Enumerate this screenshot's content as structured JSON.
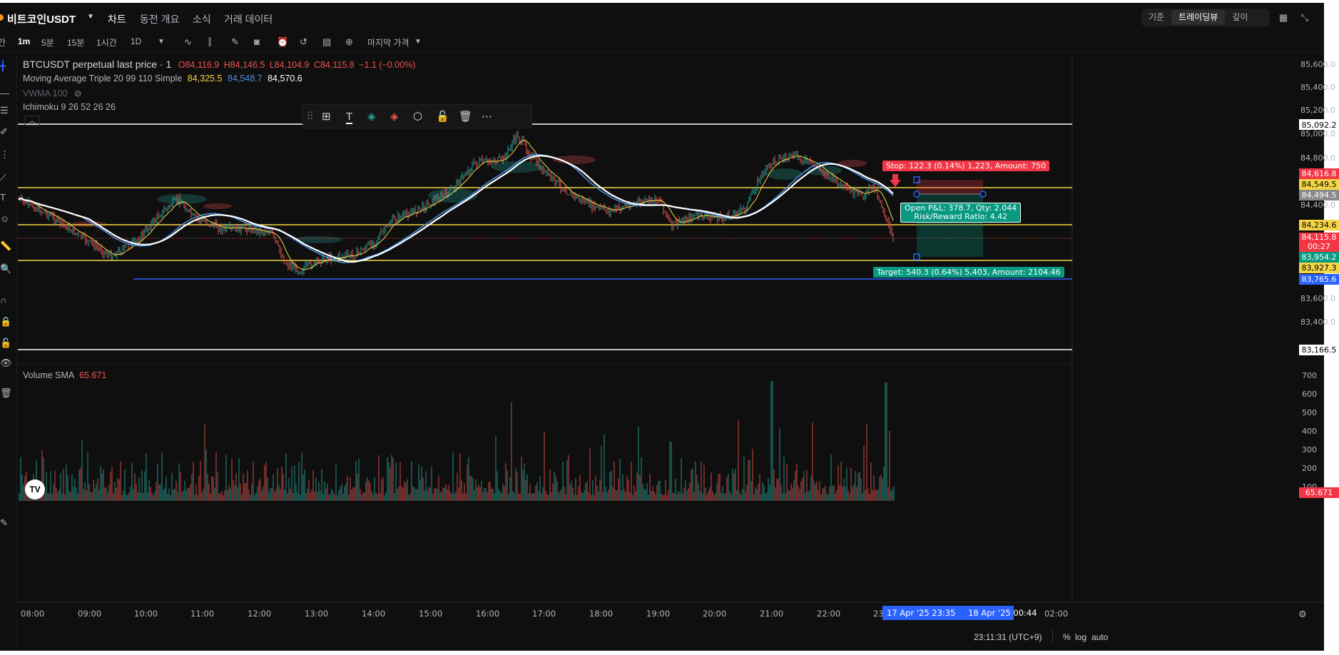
{
  "header": {
    "symbol": "비트코인USDT",
    "nav": [
      "차트",
      "동전 개요",
      "소식",
      "거래 데이터"
    ],
    "view_segments": [
      "기준",
      "트레이딩뷰",
      "깊이"
    ],
    "active_segment": "트레이딩뷰"
  },
  "toolbar": {
    "cut_label": "간",
    "intervals": [
      "1m",
      "5분",
      "15분",
      "1시간",
      "1D"
    ],
    "active_interval": "1m",
    "price_type": "마지막 가격"
  },
  "legend": {
    "title": "BTCUSDT perpetual last price · 1",
    "ohlc": {
      "o": "O84,116.9",
      "h": "H84,146.5",
      "l": "L84,104.9",
      "c": "C84,115.8",
      "chg": "−1.1 (−0.00%)"
    },
    "ma_name": "Moving Average Triple 20 99 110 Simple",
    "ma_values": [
      "84,325.5",
      "84,548.7",
      "84,570.6"
    ],
    "vwma": "VWMA 100",
    "ichimoku": "Ichimoku 9 26 52 26 26",
    "volume_sma": "Volume SMA",
    "volume_sma_value": "65.671"
  },
  "position": {
    "stop_text": "Stop: 122.3 (0.14%) 1,223, Amount: 750",
    "pnl_text": "Open P&L: 378.7, Qty: 2.044",
    "rr_text": "Risk/Reward Ratio: 4.42",
    "target_text": "Target: 540.3 (0.64%) 5,403, Amount: 2104.46"
  },
  "price_axis": [
    "85,600.0",
    "85,400.0",
    "85,200.0",
    "85,000.0",
    "84,800.0",
    "84,400.0",
    "83,600.0",
    "83,400.0"
  ],
  "price_tags": {
    "white_top": "85,092.2",
    "stop": "84,616.8",
    "yellow1": "84,549.5",
    "entry": "84,494.5",
    "yellow2": "84,234.6",
    "last": "84,115.8",
    "countdown": "00:27",
    "target": "83,954.2",
    "yellow3": "83,927.3",
    "blue": "83,765.6",
    "white_bottom": "83,166.5",
    "volume_last": "65.671"
  },
  "volume_axis": [
    "700",
    "600",
    "500",
    "400",
    "300",
    "200",
    "100"
  ],
  "time_axis": [
    "08:00",
    "09:00",
    "10:00",
    "11:00",
    "12:00",
    "13:00",
    "14:00",
    "15:00",
    "16:00",
    "17:00",
    "18:00",
    "19:00",
    "20:00",
    "21:00",
    "22:00",
    "23:",
    "02:00"
  ],
  "time_range": {
    "start": "17 Apr '25   23:35",
    "end": "18 Apr '25   00:44"
  },
  "bottombar": {
    "clock": "23:11:31 (UTC+9)",
    "percent": "%",
    "log": "log",
    "auto": "auto"
  },
  "colors": {
    "background": "#0f0f0f",
    "up": "#26a69a",
    "down": "#ef5350",
    "ma20": "#f5d547",
    "ma99": "#4a90e2",
    "ma110": "#ffffff",
    "stop": "#f23645",
    "target": "#089981",
    "blue_line": "#2962ff",
    "axis_blue": "#2962ff"
  }
}
